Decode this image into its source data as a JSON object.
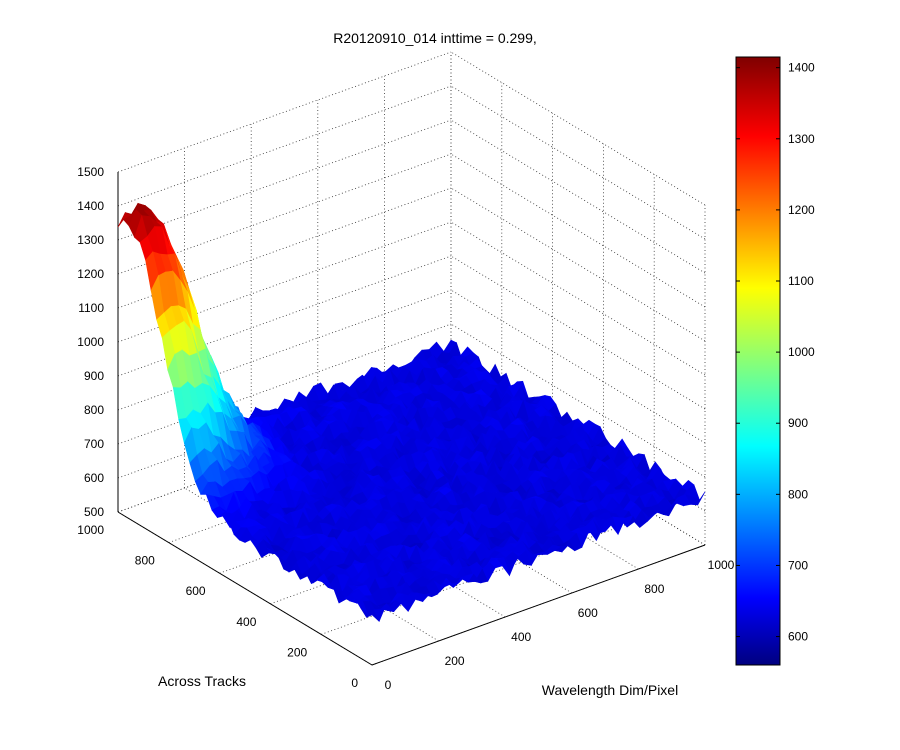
{
  "chart_data": {
    "type": "surface",
    "title": "R20120910_014 inttime = 0.299,",
    "xlabel": "Wavelength Dim/Pixel",
    "ylabel": "Across Tracks",
    "zlabel": "",
    "xlim": [
      0,
      1000
    ],
    "ylim": [
      0,
      1000
    ],
    "zlim": [
      500,
      1500
    ],
    "x_ticks": [
      "0",
      "200",
      "400",
      "600",
      "800",
      "1000"
    ],
    "y_ticks": [
      "0",
      "200",
      "400",
      "600",
      "800",
      "1000"
    ],
    "z_ticks": [
      "500",
      "600",
      "700",
      "800",
      "900",
      "1000",
      "1100",
      "1200",
      "1300",
      "1400",
      "1500"
    ],
    "grid": true,
    "colormap": "jet",
    "surface": {
      "baseline": 640,
      "peak_value": 1400,
      "peak_x": 40,
      "peak_y": 960,
      "spread_x": 170,
      "spread_y": 190,
      "noise_amplitude": 25
    },
    "colorbar": {
      "clim": [
        560,
        1415
      ],
      "ticks": [
        "600",
        "700",
        "800",
        "900",
        "1000",
        "1100",
        "1200",
        "1300",
        "1400"
      ],
      "placement": "right"
    }
  }
}
